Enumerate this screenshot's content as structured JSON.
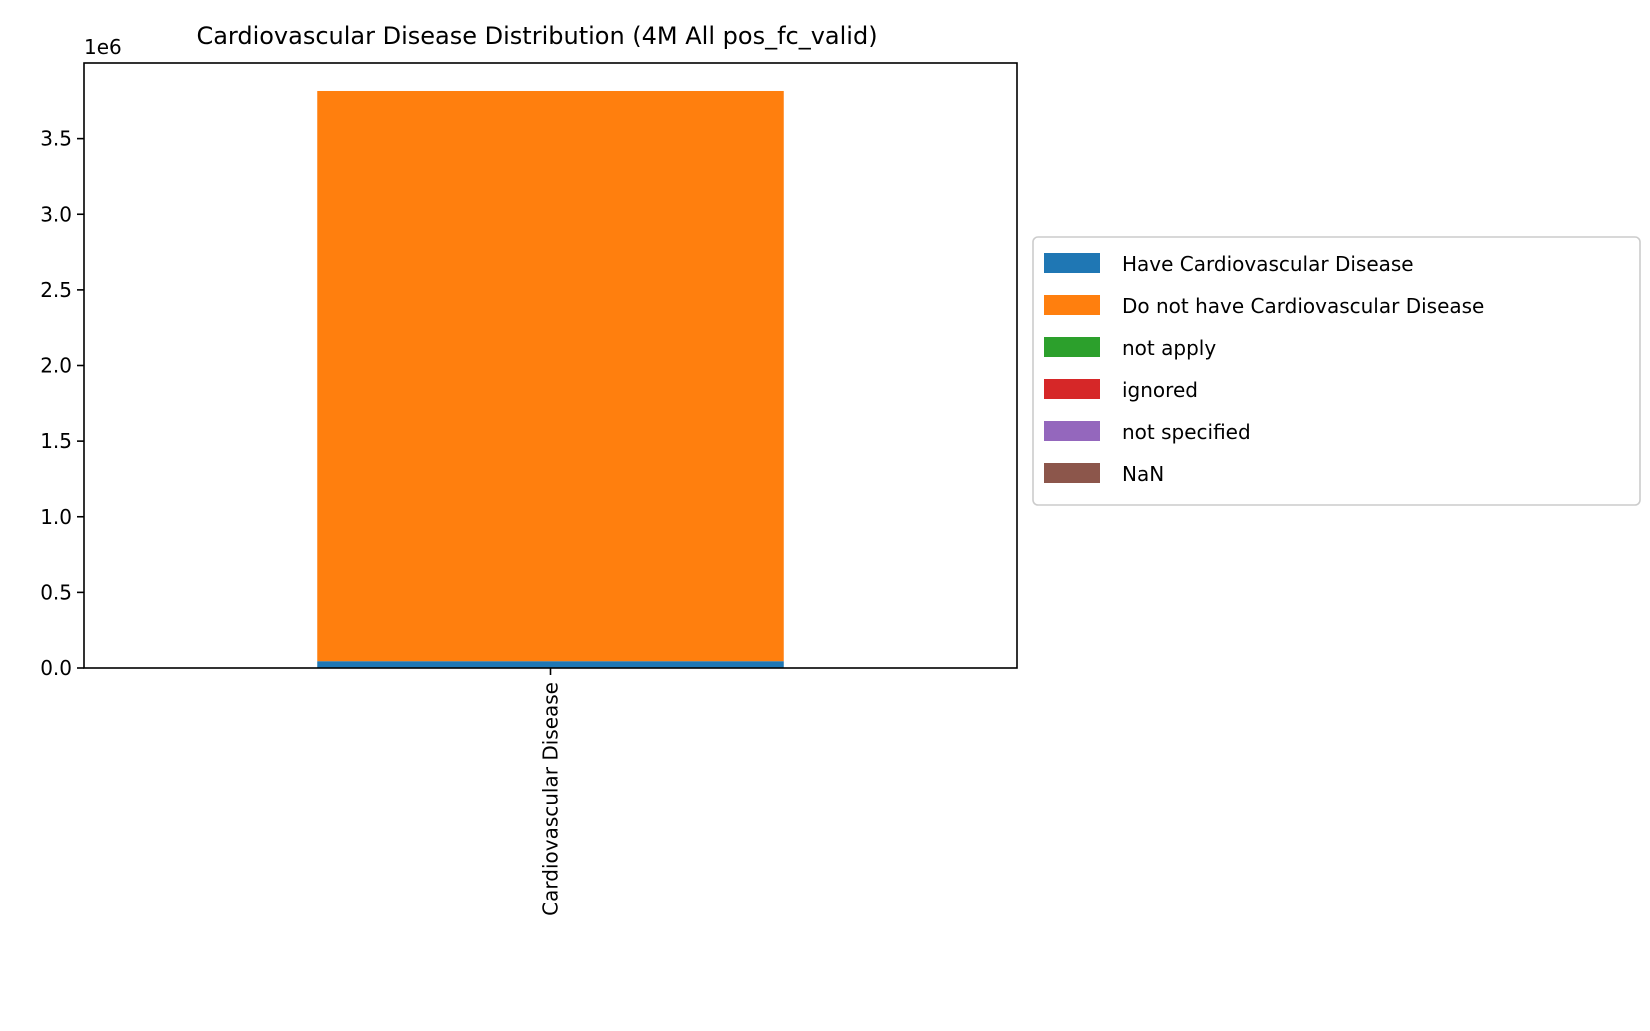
{
  "chart_data": {
    "type": "bar",
    "stacked": true,
    "title": "Cardiovascular Disease Distribution (4M All pos_fc_valid)",
    "offset_label": "1e6",
    "categories": [
      "Cardiovascular Disease"
    ],
    "series": [
      {
        "name": "Have Cardiovascular Disease",
        "values": [
          45000
        ],
        "color": "#1f77b4"
      },
      {
        "name": "Do not have Cardiovascular Disease",
        "values": [
          3770000
        ],
        "color": "#ff7f0e"
      },
      {
        "name": "not apply",
        "values": [
          0
        ],
        "color": "#2ca02c"
      },
      {
        "name": "ignored",
        "values": [
          0
        ],
        "color": "#d62728"
      },
      {
        "name": "not specified",
        "values": [
          0
        ],
        "color": "#9467bd"
      },
      {
        "name": "NaN",
        "values": [
          0
        ],
        "color": "#8c564b"
      }
    ],
    "yticks": [
      "0.0",
      "0.5",
      "1.0",
      "1.5",
      "2.0",
      "2.5",
      "3.0",
      "3.5"
    ],
    "ytick_values": [
      0,
      500000,
      1000000,
      1500000,
      2000000,
      2500000,
      3000000,
      3500000
    ],
    "ylim": [
      0,
      4000000
    ],
    "xlabel": "",
    "ylabel": "",
    "grid": false,
    "legend_position": "outside-right"
  }
}
